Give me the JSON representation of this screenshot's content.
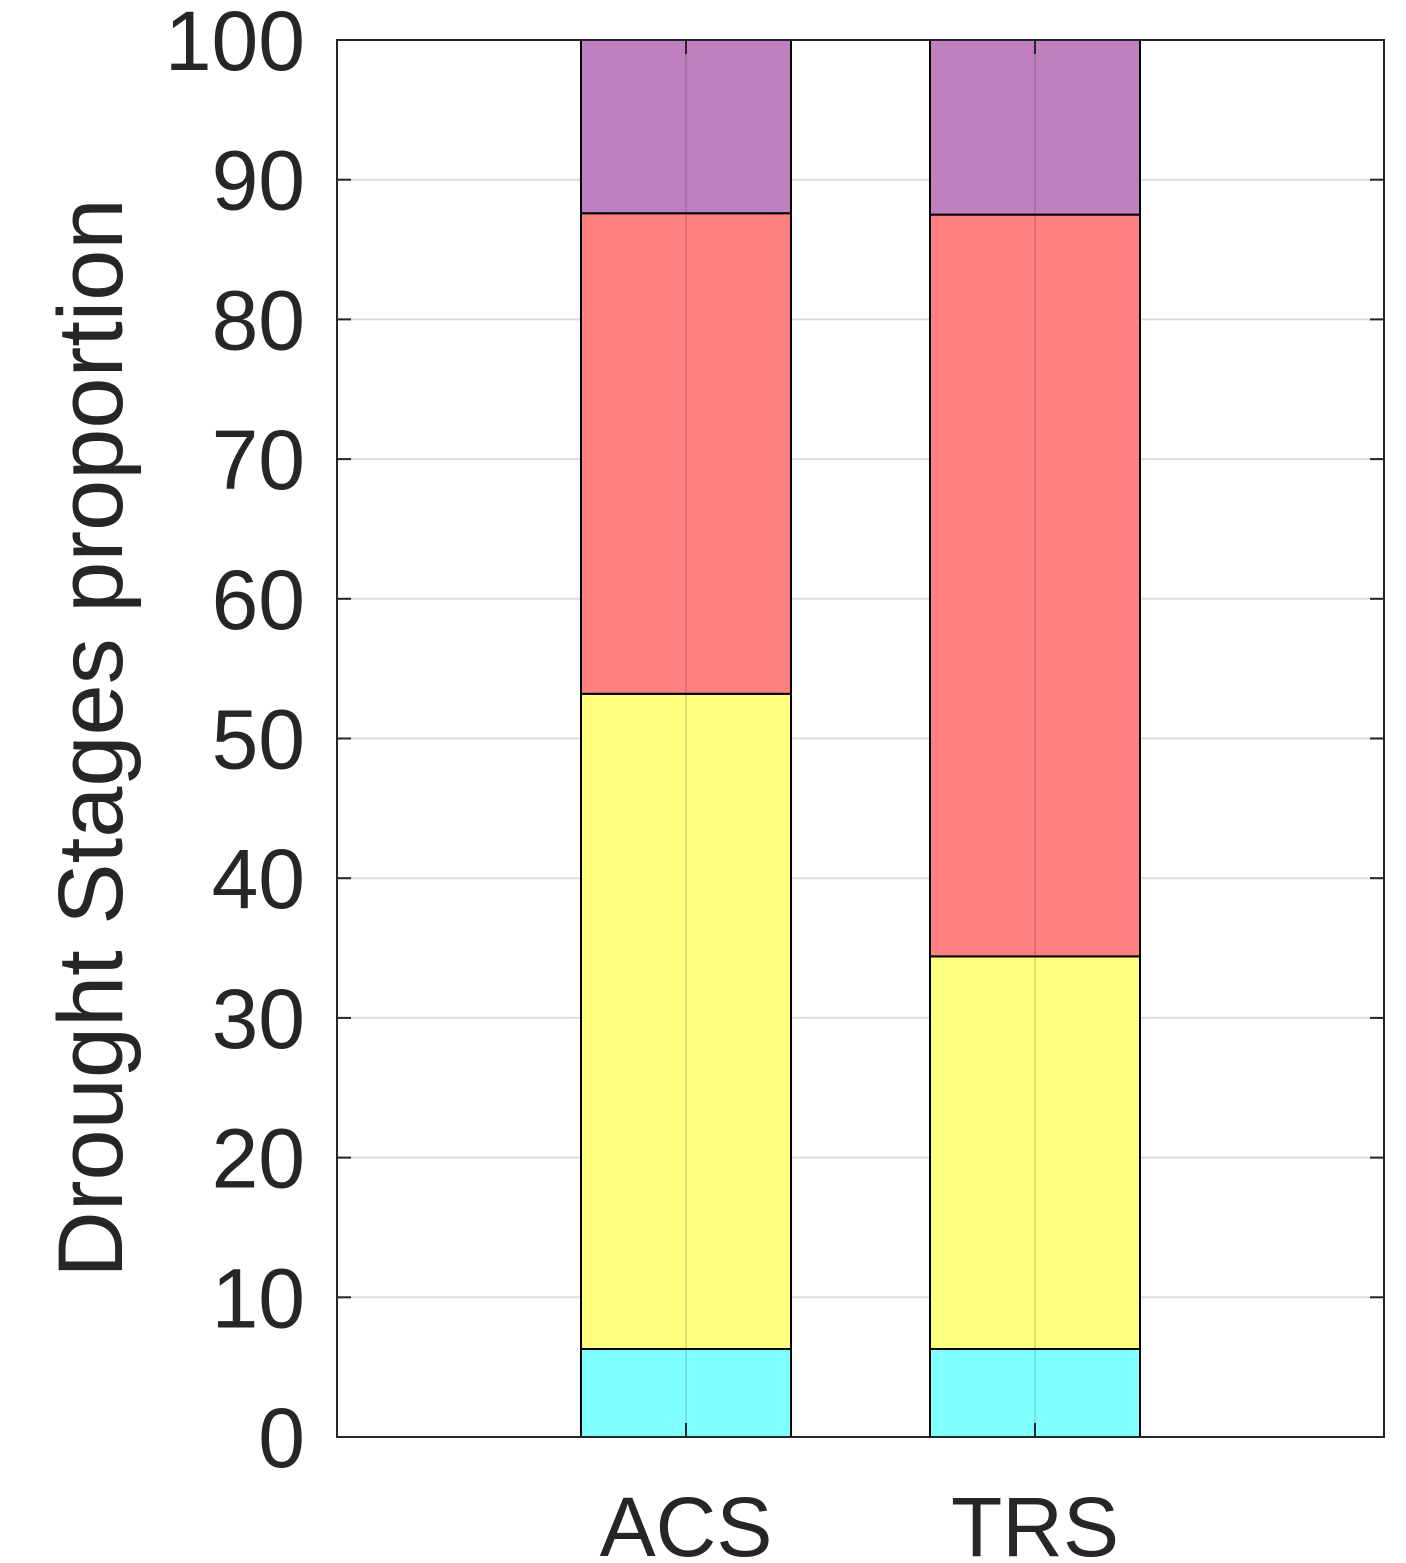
{
  "chart_data": {
    "type": "bar",
    "stacked": true,
    "categories": [
      "ACS",
      "TRS"
    ],
    "ylabel": "Drought Stages proportion",
    "xlabel": "",
    "ylim": [
      0,
      100
    ],
    "yticks": [
      0,
      10,
      20,
      30,
      40,
      50,
      60,
      70,
      80,
      90,
      100
    ],
    "grid": true,
    "series": [
      {
        "color": "#80FFFF",
        "values": [
          6.3,
          6.3
        ]
      },
      {
        "color": "#FFFF80",
        "values": [
          46.9,
          28.1
        ]
      },
      {
        "color": "#FF8080",
        "values": [
          34.4,
          53.1
        ]
      },
      {
        "color": "#BF80BF",
        "values": [
          12.4,
          12.5
        ]
      }
    ]
  }
}
